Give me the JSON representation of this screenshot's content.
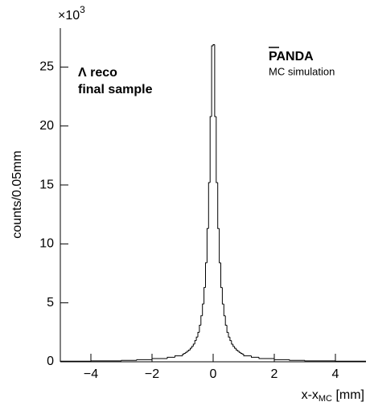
{
  "chart_data": {
    "type": "histogram",
    "axis_multiplier": "×10",
    "axis_multiplier_exponent": "3",
    "ylabel": "counts/0.05mm",
    "xlabel_main": "x-x",
    "xlabel_sub": "MC",
    "xlabel_unit": "[mm]",
    "annotations": [
      "Λ reco",
      "final sample"
    ],
    "experiment": "PANDA",
    "experiment_note": "MC simulation",
    "bins": [
      -5,
      -4,
      -3,
      -2.5,
      -2,
      -1.5,
      -1.25,
      -1,
      -0.95,
      -0.9,
      -0.85,
      -0.8,
      -0.75,
      -0.7,
      -0.65,
      -0.6,
      -0.55,
      -0.5,
      -0.45,
      -0.4,
      -0.35,
      -0.3,
      -0.25,
      -0.2,
      -0.15,
      -0.1,
      -0.05,
      0,
      0.05,
      0.1,
      0.15,
      0.2,
      0.25,
      0.3,
      0.35,
      0.4,
      0.45,
      0.5,
      0.55,
      0.6,
      0.65,
      0.7,
      0.75,
      0.8,
      0.85,
      0.9,
      0.95,
      1,
      1.25,
      1.5,
      2,
      2.5,
      3,
      4,
      5
    ],
    "counts": [
      0.05,
      0.08,
      0.12,
      0.18,
      0.27,
      0.38,
      0.5,
      0.65,
      0.72,
      0.8,
      0.9,
      1.0,
      1.15,
      1.3,
      1.5,
      1.8,
      2.1,
      2.5,
      3.1,
      3.9,
      4.9,
      6.3,
      8.4,
      11.3,
      15.2,
      20.8,
      26.8,
      26.9,
      20.8,
      15.2,
      11.3,
      8.4,
      6.3,
      4.9,
      3.9,
      3.1,
      2.5,
      2.1,
      1.8,
      1.5,
      1.3,
      1.15,
      1.0,
      0.9,
      0.8,
      0.72,
      0.65,
      0.5,
      0.38,
      0.27,
      0.18,
      0.12,
      0.08,
      0.05
    ],
    "color": "#000000",
    "xlim": [
      -5,
      5
    ],
    "ylim": [
      0,
      28.3
    ],
    "xticks": [
      {
        "value": -4,
        "label": "−4"
      },
      {
        "value": -2,
        "label": "−2"
      },
      0,
      2,
      4
    ],
    "yticks": [
      0,
      5,
      10,
      15,
      20,
      25
    ]
  }
}
